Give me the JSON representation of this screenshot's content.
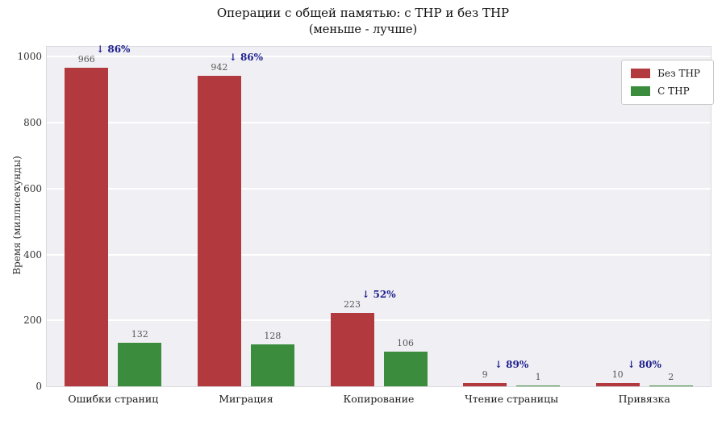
{
  "title": "Операции с общей памятью: с THP и без THP",
  "subtitle": "(меньше - лучше)",
  "chart_data": {
    "type": "bar",
    "categories": [
      "Ошибки страниц",
      "Миграция",
      "Копирование",
      "Чтение страницы",
      "Привязка"
    ],
    "series": [
      {
        "name": "Без THP",
        "color": "#b23a3e",
        "values": [
          966,
          942,
          223,
          9,
          10
        ]
      },
      {
        "name": "С THP",
        "color": "#3b8c3c",
        "values": [
          132,
          128,
          106,
          1,
          2
        ]
      }
    ],
    "annotations": [
      "↓ 86%",
      "↓ 86%",
      "↓ 52%",
      "↓ 89%",
      "↓ 80%"
    ],
    "annotation_color": "#1f1f8f",
    "value_label_color": "#555555",
    "title": "Операции с общей памятью: с THP и без THP",
    "subtitle": "(меньше - лучше)",
    "xlabel": "",
    "ylabel": "Время (миллисекунды)",
    "ylim": [
      0,
      1000
    ],
    "yticks": [
      0,
      200,
      400,
      600,
      800,
      1000
    ],
    "grid": true,
    "plot_background": "#f0f0f4",
    "legend_position": "top-right"
  }
}
